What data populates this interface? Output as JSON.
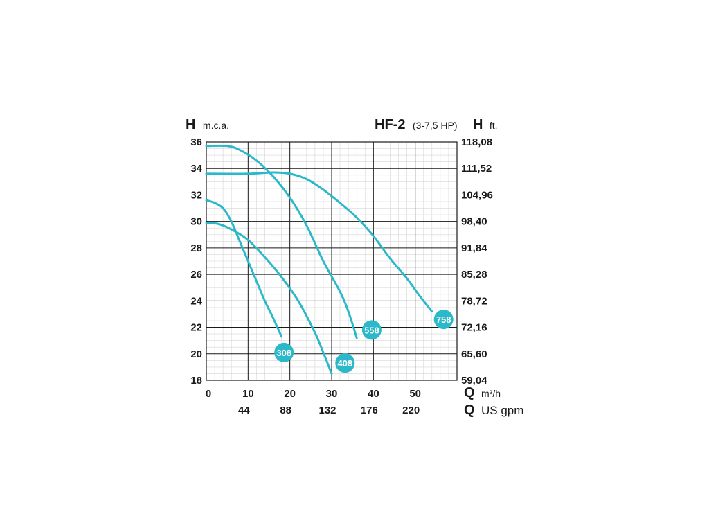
{
  "chart_data": {
    "type": "line",
    "title": "HF-2",
    "subtitle": "(3-7,5 HP)",
    "y_left_label": {
      "symbol": "H",
      "unit": "m.c.a."
    },
    "y_right_label": {
      "symbol": "H",
      "unit": "ft."
    },
    "x_label_primary": {
      "symbol": "Q",
      "unit": "m³/h"
    },
    "x_label_secondary": {
      "symbol": "Q",
      "unit": "US gpm"
    },
    "xlim": [
      0,
      60
    ],
    "ylim": [
      18,
      36
    ],
    "x_ticks_m3h": [
      0,
      10,
      20,
      30,
      40,
      50
    ],
    "x_ticks_usgpm": [
      {
        "x": 10,
        "label": "44"
      },
      {
        "x": 20,
        "label": "88"
      },
      {
        "x": 30,
        "label": "132"
      },
      {
        "x": 40,
        "label": "176"
      },
      {
        "x": 50,
        "label": "220"
      }
    ],
    "y_ticks_left": [
      36,
      34,
      32,
      30,
      28,
      26,
      24,
      22,
      20,
      18
    ],
    "y_ticks_right": [
      "118,08",
      "111,52",
      "104,96",
      "98,40",
      "91,84",
      "85,28",
      "78,72",
      "72,16",
      "65,60",
      "59,04"
    ],
    "grid": true,
    "line_color": "#2bb8c9",
    "series": [
      {
        "name": "308",
        "points": [
          [
            0,
            31.6
          ],
          [
            2,
            31.4
          ],
          [
            4,
            31.0
          ],
          [
            6,
            30.0
          ],
          [
            8,
            28.5
          ],
          [
            10,
            27.0
          ],
          [
            12,
            25.5
          ],
          [
            14,
            24.0
          ],
          [
            16,
            22.7
          ],
          [
            18,
            21.3
          ]
        ]
      },
      {
        "name": "408",
        "points": [
          [
            0,
            29.9
          ],
          [
            3,
            29.8
          ],
          [
            6,
            29.4
          ],
          [
            10,
            28.6
          ],
          [
            14,
            27.3
          ],
          [
            18,
            25.8
          ],
          [
            22,
            24.0
          ],
          [
            26,
            21.6
          ],
          [
            28,
            20.1
          ],
          [
            30,
            18.5
          ]
        ]
      },
      {
        "name": "558",
        "points": [
          [
            0,
            35.7
          ],
          [
            5,
            35.7
          ],
          [
            8,
            35.4
          ],
          [
            12,
            34.6
          ],
          [
            16,
            33.4
          ],
          [
            20,
            31.8
          ],
          [
            24,
            29.7
          ],
          [
            28,
            27.0
          ],
          [
            32,
            24.7
          ],
          [
            34,
            23.2
          ],
          [
            36,
            21.2
          ]
        ]
      },
      {
        "name": "758",
        "points": [
          [
            0,
            33.6
          ],
          [
            10,
            33.6
          ],
          [
            16,
            33.7
          ],
          [
            20,
            33.6
          ],
          [
            24,
            33.2
          ],
          [
            28,
            32.4
          ],
          [
            32,
            31.4
          ],
          [
            36,
            30.3
          ],
          [
            40,
            28.9
          ],
          [
            44,
            27.2
          ],
          [
            48,
            25.7
          ],
          [
            51,
            24.4
          ],
          [
            54,
            23.2
          ]
        ]
      }
    ],
    "badges": [
      {
        "label": "308",
        "x": 18.6,
        "y": 20.1
      },
      {
        "label": "408",
        "x": 33.2,
        "y": 19.3
      },
      {
        "label": "558",
        "x": 39.6,
        "y": 21.8
      },
      {
        "label": "758",
        "x": 56.8,
        "y": 22.6
      }
    ]
  }
}
